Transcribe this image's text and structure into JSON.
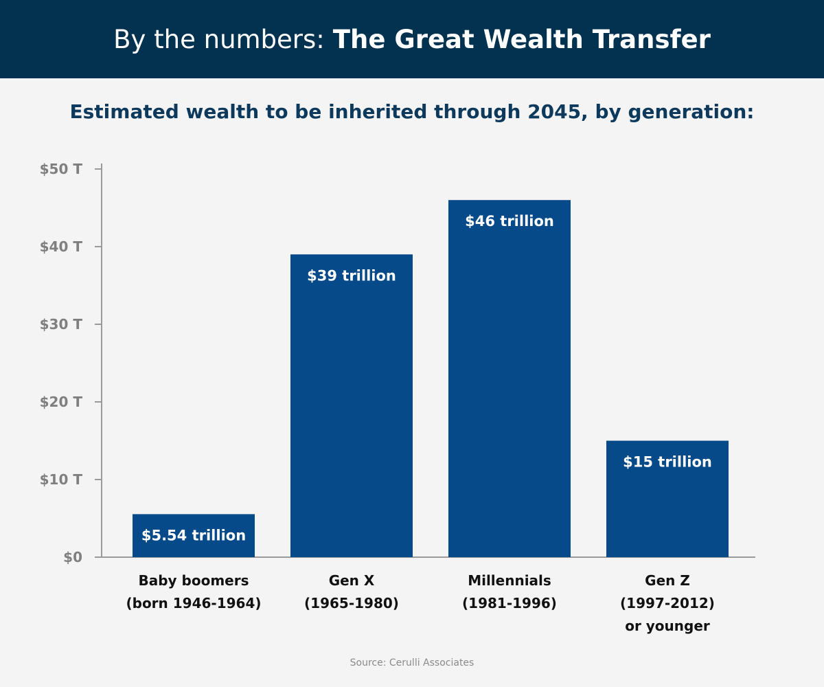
{
  "header": {
    "title_prefix": "By the numbers:",
    "title_strong": "The Great Wealth Transfer",
    "background": "#023250"
  },
  "subtitle": "Estimated wealth to be inherited through 2045, by generation:",
  "source": "Source: Cerulli Associates",
  "chart_data": {
    "type": "bar",
    "title": "Estimated wealth to be inherited through 2045, by generation:",
    "xlabel": "",
    "ylabel": "",
    "ylim": [
      0,
      50
    ],
    "yticks": [
      0,
      10,
      20,
      30,
      40,
      50
    ],
    "ytick_labels": [
      "$0",
      "$10 T",
      "$20 T",
      "$30 T",
      "$40 T",
      "$50 T"
    ],
    "categories": [
      [
        "Baby boomers",
        "(born 1946-1964)"
      ],
      [
        "Gen X",
        "(1965-1980)"
      ],
      [
        "Millennials",
        "(1981-1996)"
      ],
      [
        "Gen Z",
        "(1997-2012)",
        "or younger"
      ]
    ],
    "values": [
      5.54,
      39,
      46,
      15
    ],
    "value_labels": [
      "$5.54 trillion",
      "$39 trillion",
      "$46 trillion",
      "$15 trillion"
    ],
    "bar_color": "#074a8a",
    "grid": false,
    "legend": "none"
  }
}
